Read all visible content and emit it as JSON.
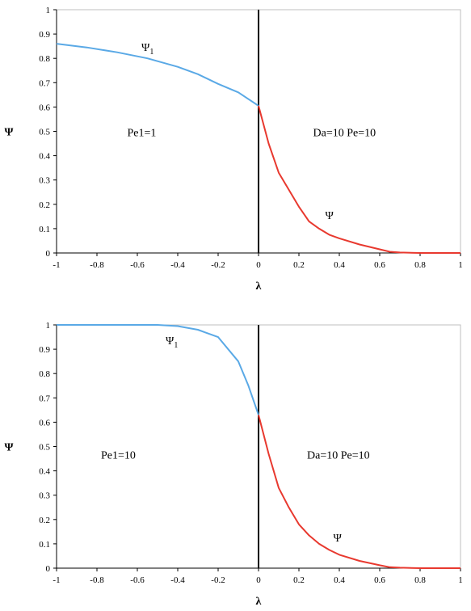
{
  "chart_data": [
    {
      "type": "line",
      "xlabel": "λ",
      "ylabel": "Ψ",
      "xlim": [
        -1,
        1
      ],
      "ylim": [
        0,
        1
      ],
      "xticks": [
        "-1",
        "-0.8",
        "-0.6",
        "-0.4",
        "-0.2",
        "0",
        "0.2",
        "0.4",
        "0.6",
        "0.8",
        "1"
      ],
      "yticks": [
        "0",
        "0.1",
        "0.2",
        "0.3",
        "0.4",
        "0.5",
        "0.6",
        "0.7",
        "0.8",
        "0.9",
        "1"
      ],
      "grid": false,
      "series": [
        {
          "name": "Ψ1",
          "color": "#5aa9e6",
          "x": [
            -1,
            -0.85,
            -0.7,
            -0.55,
            -0.4,
            -0.3,
            -0.2,
            -0.1,
            0
          ],
          "y": [
            0.86,
            0.845,
            0.825,
            0.8,
            0.765,
            0.735,
            0.695,
            0.66,
            0.605
          ]
        },
        {
          "name": "Ψ",
          "color": "#e8392f",
          "x": [
            0,
            0.05,
            0.1,
            0.15,
            0.2,
            0.25,
            0.3,
            0.35,
            0.4,
            0.5,
            0.6,
            0.65,
            0.7,
            0.8,
            1
          ],
          "y": [
            0.605,
            0.45,
            0.33,
            0.26,
            0.19,
            0.13,
            0.1,
            0.075,
            0.06,
            0.035,
            0.015,
            0.005,
            0.002,
            0.0,
            0.0
          ]
        }
      ],
      "annotations": [
        {
          "main": "Ψ",
          "sub": "1",
          "x": -0.58,
          "y": 0.83
        },
        {
          "main": "Pe1=1",
          "sub": "",
          "x": -0.65,
          "y": 0.48
        },
        {
          "main": "Da=10  Pe=10",
          "sub": "",
          "x": 0.27,
          "y": 0.48
        },
        {
          "main": "Ψ",
          "sub": "",
          "x": 0.33,
          "y": 0.14
        }
      ],
      "vline_x": 0
    },
    {
      "type": "line",
      "xlabel": "λ",
      "ylabel": "Ψ",
      "xlim": [
        -1,
        1
      ],
      "ylim": [
        0,
        1
      ],
      "xticks": [
        "-1",
        "-0.8",
        "-0.6",
        "-0.4",
        "-0.2",
        "0",
        "0.2",
        "0.4",
        "0.6",
        "0.8",
        "1"
      ],
      "yticks": [
        "0",
        "0.1",
        "0.2",
        "0.3",
        "0.4",
        "0.5",
        "0.6",
        "0.7",
        "0.8",
        "0.9",
        "1"
      ],
      "grid": false,
      "series": [
        {
          "name": "Ψ1",
          "color": "#5aa9e6",
          "x": [
            -1,
            -0.8,
            -0.6,
            -0.5,
            -0.4,
            -0.3,
            -0.2,
            -0.1,
            -0.05,
            0
          ],
          "y": [
            1,
            1,
            1,
            1,
            0.995,
            0.98,
            0.95,
            0.85,
            0.75,
            0.63
          ]
        },
        {
          "name": "Ψ",
          "color": "#e8392f",
          "x": [
            0,
            0.05,
            0.1,
            0.15,
            0.2,
            0.25,
            0.3,
            0.35,
            0.4,
            0.5,
            0.6,
            0.65,
            0.7,
            0.8,
            1
          ],
          "y": [
            0.63,
            0.47,
            0.33,
            0.25,
            0.18,
            0.135,
            0.1,
            0.075,
            0.055,
            0.03,
            0.012,
            0.004,
            0.002,
            0.0,
            0.0
          ]
        }
      ],
      "annotations": [
        {
          "main": "Ψ",
          "sub": "1",
          "x": -0.46,
          "y": 0.92
        },
        {
          "main": "Pe1=10",
          "sub": "",
          "x": -0.78,
          "y": 0.45
        },
        {
          "main": "Da=10  Pe=10",
          "sub": "",
          "x": 0.24,
          "y": 0.45
        },
        {
          "main": "Ψ",
          "sub": "",
          "x": 0.37,
          "y": 0.11
        }
      ],
      "vline_x": 0
    }
  ]
}
